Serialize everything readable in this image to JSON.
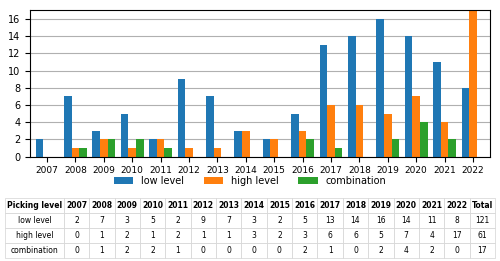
{
  "chart_data": {
    "type": "bar",
    "categories": [
      "2007",
      "2008",
      "2009",
      "2010",
      "2011",
      "2012",
      "2013",
      "2014",
      "2015",
      "2016",
      "2017",
      "2018",
      "2019",
      "2020",
      "2021",
      "2022"
    ],
    "series": [
      {
        "name": "low level",
        "values": [
          2,
          7,
          3,
          5,
          2,
          9,
          7,
          3,
          2,
          5,
          13,
          14,
          16,
          14,
          11,
          8
        ]
      },
      {
        "name": "high level",
        "values": [
          0,
          1,
          2,
          1,
          2,
          1,
          1,
          3,
          2,
          3,
          6,
          6,
          5,
          7,
          4,
          17
        ]
      },
      {
        "name": "combination",
        "values": [
          0,
          1,
          2,
          2,
          1,
          0,
          0,
          0,
          0,
          2,
          1,
          0,
          2,
          4,
          2,
          0
        ]
      }
    ],
    "ylim": [
      0,
      17
    ],
    "yticks": [
      0,
      2,
      4,
      6,
      8,
      10,
      12,
      14,
      16
    ],
    "grid": true,
    "legend": "lower center",
    "table": {
      "header": [
        "Picking level",
        "2007",
        "2008",
        "2009",
        "2010",
        "2011",
        "2012",
        "2013",
        "2014",
        "2015",
        "2016",
        "2017",
        "2018",
        "2019",
        "2020",
        "2021",
        "2022",
        "Total"
      ],
      "rows": [
        [
          "low level",
          "2",
          "7",
          "3",
          "5",
          "2",
          "9",
          "7",
          "3",
          "2",
          "5",
          "13",
          "14",
          "16",
          "14",
          "11",
          "8",
          "121"
        ],
        [
          "high level",
          "0",
          "1",
          "2",
          "1",
          "2",
          "1",
          "1",
          "3",
          "2",
          "3",
          "6",
          "6",
          "5",
          "7",
          "4",
          "17",
          "61"
        ],
        [
          "combination",
          "0",
          "1",
          "2",
          "2",
          "1",
          "0",
          "0",
          "0",
          "0",
          "2",
          "1",
          "0",
          "2",
          "4",
          "2",
          "0",
          "17"
        ]
      ]
    }
  }
}
